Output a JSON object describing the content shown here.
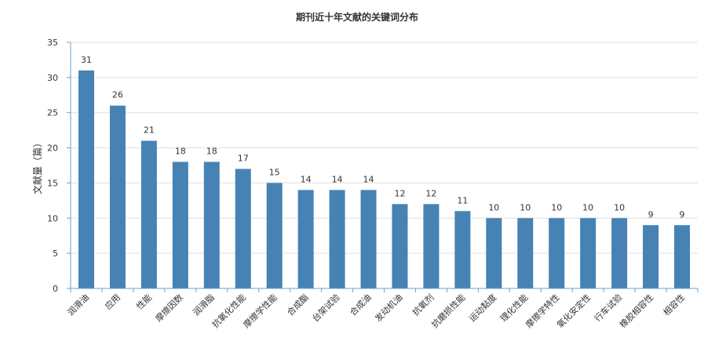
{
  "chart_data": {
    "type": "bar",
    "title": "期刊近十年文献的关键词分布",
    "xlabel": "",
    "ylabel": "文献量（篇）",
    "ylim": [
      0,
      35
    ],
    "yticks": [
      0,
      5,
      10,
      15,
      20,
      25,
      30,
      35
    ],
    "grid": true,
    "categories": [
      "润滑油",
      "应用",
      "性能",
      "摩擦因数",
      "润滑脂",
      "抗氧化性能",
      "摩擦学性能",
      "合成酯",
      "台架试验",
      "合成油",
      "发动机油",
      "抗氧剂",
      "抗磨损性能",
      "运动黏度",
      "理化性能",
      "摩擦学特性",
      "氧化安定性",
      "行车试验",
      "橡胶相容性",
      "相容性"
    ],
    "values": [
      31,
      26,
      21,
      18,
      18,
      17,
      15,
      14,
      14,
      14,
      12,
      12,
      11,
      10,
      10,
      10,
      10,
      10,
      9,
      9
    ],
    "bar_color": "#4682b4"
  }
}
